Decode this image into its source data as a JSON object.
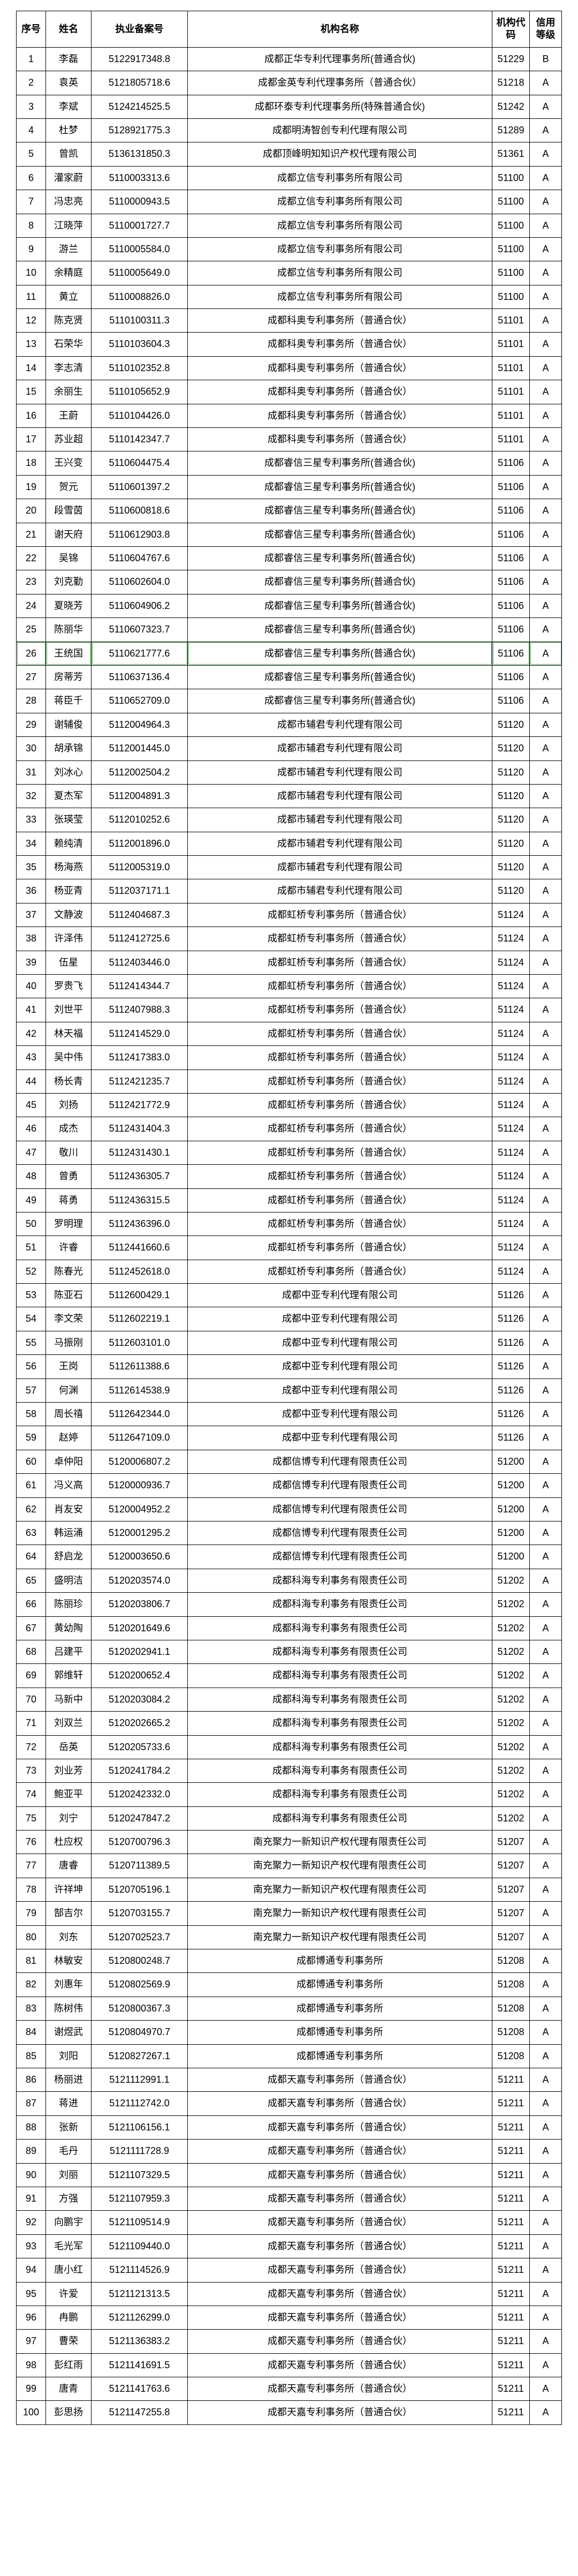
{
  "columns": [
    "序号",
    "姓名",
    "执业备案号",
    "机构名称",
    "机构代码",
    "信用等级"
  ],
  "highlight_seq": 26,
  "rows": [
    {
      "seq": 1,
      "name": "李磊",
      "lic": "5122917348.8",
      "org": "成都正华专利代理事务所(普通合伙)",
      "code": "51229",
      "grade": "B"
    },
    {
      "seq": 2,
      "name": "袁英",
      "lic": "5121805718.6",
      "org": "成都金英专利代理事务所（普通合伙）",
      "code": "51218",
      "grade": "A"
    },
    {
      "seq": 3,
      "name": "李斌",
      "lic": "5124214525.5",
      "org": "成都环泰专利代理事务所(特殊普通合伙)",
      "code": "51242",
      "grade": "A"
    },
    {
      "seq": 4,
      "name": "杜梦",
      "lic": "5128921775.3",
      "org": "成都明涛智创专利代理有限公司",
      "code": "51289",
      "grade": "A"
    },
    {
      "seq": 5,
      "name": "曾凯",
      "lic": "5136131850.3",
      "org": "成都顶峰明知知识产权代理有限公司",
      "code": "51361",
      "grade": "A"
    },
    {
      "seq": 6,
      "name": "灌家蔚",
      "lic": "5110003313.6",
      "org": "成都立信专利事务所有限公司",
      "code": "51100",
      "grade": "A"
    },
    {
      "seq": 7,
      "name": "冯忠亮",
      "lic": "5110000943.5",
      "org": "成都立信专利事务所有限公司",
      "code": "51100",
      "grade": "A"
    },
    {
      "seq": 8,
      "name": "江晓萍",
      "lic": "5110001727.7",
      "org": "成都立信专利事务所有限公司",
      "code": "51100",
      "grade": "A"
    },
    {
      "seq": 9,
      "name": "游兰",
      "lic": "5110005584.0",
      "org": "成都立信专利事务所有限公司",
      "code": "51100",
      "grade": "A"
    },
    {
      "seq": 10,
      "name": "余精庭",
      "lic": "5110005649.0",
      "org": "成都立信专利事务所有限公司",
      "code": "51100",
      "grade": "A"
    },
    {
      "seq": 11,
      "name": "黄立",
      "lic": "5110008826.0",
      "org": "成都立信专利事务所有限公司",
      "code": "51100",
      "grade": "A"
    },
    {
      "seq": 12,
      "name": "陈克贤",
      "lic": "5110100311.3",
      "org": "成都科奥专利事务所（普通合伙）",
      "code": "51101",
      "grade": "A"
    },
    {
      "seq": 13,
      "name": "石荣华",
      "lic": "5110103604.3",
      "org": "成都科奥专利事务所（普通合伙）",
      "code": "51101",
      "grade": "A"
    },
    {
      "seq": 14,
      "name": "李志清",
      "lic": "5110102352.8",
      "org": "成都科奥专利事务所（普通合伙）",
      "code": "51101",
      "grade": "A"
    },
    {
      "seq": 15,
      "name": "余丽生",
      "lic": "5110105652.9",
      "org": "成都科奥专利事务所（普通合伙）",
      "code": "51101",
      "grade": "A"
    },
    {
      "seq": 16,
      "name": "王蔚",
      "lic": "5110104426.0",
      "org": "成都科奥专利事务所（普通合伙）",
      "code": "51101",
      "grade": "A"
    },
    {
      "seq": 17,
      "name": "苏业超",
      "lic": "5110142347.7",
      "org": "成都科奥专利事务所（普通合伙）",
      "code": "51101",
      "grade": "A"
    },
    {
      "seq": 18,
      "name": "王兴变",
      "lic": "5110604475.4",
      "org": "成都睿信三星专利事务所(普通合伙)",
      "code": "51106",
      "grade": "A"
    },
    {
      "seq": 19,
      "name": "贺元",
      "lic": "5110601397.2",
      "org": "成都睿信三星专利事务所(普通合伙)",
      "code": "51106",
      "grade": "A"
    },
    {
      "seq": 20,
      "name": "段雪茵",
      "lic": "5110600818.6",
      "org": "成都睿信三星专利事务所(普通合伙)",
      "code": "51106",
      "grade": "A"
    },
    {
      "seq": 21,
      "name": "谢天府",
      "lic": "5110612903.8",
      "org": "成都睿信三星专利事务所(普通合伙)",
      "code": "51106",
      "grade": "A"
    },
    {
      "seq": 22,
      "name": "吴锦",
      "lic": "5110604767.6",
      "org": "成都睿信三星专利事务所(普通合伙)",
      "code": "51106",
      "grade": "A"
    },
    {
      "seq": 23,
      "name": "刘克勤",
      "lic": "5110602604.0",
      "org": "成都睿信三星专利事务所(普通合伙)",
      "code": "51106",
      "grade": "A"
    },
    {
      "seq": 24,
      "name": "夏晓芳",
      "lic": "5110604906.2",
      "org": "成都睿信三星专利事务所(普通合伙)",
      "code": "51106",
      "grade": "A"
    },
    {
      "seq": 25,
      "name": "陈丽华",
      "lic": "5110607323.7",
      "org": "成都睿信三星专利事务所(普通合伙)",
      "code": "51106",
      "grade": "A"
    },
    {
      "seq": 26,
      "name": "王统国",
      "lic": "5110621777.6",
      "org": "成都睿信三星专利事务所(普通合伙)",
      "code": "51106",
      "grade": "A"
    },
    {
      "seq": 27,
      "name": "房蒂芳",
      "lic": "5110637136.4",
      "org": "成都睿信三星专利事务所(普通合伙)",
      "code": "51106",
      "grade": "A"
    },
    {
      "seq": 28,
      "name": "蒋臣千",
      "lic": "5110652709.0",
      "org": "成都睿信三星专利事务所(普通合伙)",
      "code": "51106",
      "grade": "A"
    },
    {
      "seq": 29,
      "name": "谢辅俊",
      "lic": "5112004964.3",
      "org": "成都市辅君专利代理有限公司",
      "code": "51120",
      "grade": "A"
    },
    {
      "seq": 30,
      "name": "胡承锦",
      "lic": "5112001445.0",
      "org": "成都市辅君专利代理有限公司",
      "code": "51120",
      "grade": "A"
    },
    {
      "seq": 31,
      "name": "刘冰心",
      "lic": "5112002504.2",
      "org": "成都市辅君专利代理有限公司",
      "code": "51120",
      "grade": "A"
    },
    {
      "seq": 32,
      "name": "夏杰军",
      "lic": "5112004891.3",
      "org": "成都市辅君专利代理有限公司",
      "code": "51120",
      "grade": "A"
    },
    {
      "seq": 33,
      "name": "张瑛莹",
      "lic": "5112010252.6",
      "org": "成都市辅君专利代理有限公司",
      "code": "51120",
      "grade": "A"
    },
    {
      "seq": 34,
      "name": "赖纯清",
      "lic": "5112001896.0",
      "org": "成都市辅君专利代理有限公司",
      "code": "51120",
      "grade": "A"
    },
    {
      "seq": 35,
      "name": "杨海燕",
      "lic": "5112005319.0",
      "org": "成都市辅君专利代理有限公司",
      "code": "51120",
      "grade": "A"
    },
    {
      "seq": 36,
      "name": "杨亚青",
      "lic": "5112037171.1",
      "org": "成都市辅君专利代理有限公司",
      "code": "51120",
      "grade": "A"
    },
    {
      "seq": 37,
      "name": "文静波",
      "lic": "5112404687.3",
      "org": "成都虹桥专利事务所（普通合伙）",
      "code": "51124",
      "grade": "A"
    },
    {
      "seq": 38,
      "name": "许泽伟",
      "lic": "5112412725.6",
      "org": "成都虹桥专利事务所（普通合伙）",
      "code": "51124",
      "grade": "A"
    },
    {
      "seq": 39,
      "name": "伍星",
      "lic": "5112403446.0",
      "org": "成都虹桥专利事务所（普通合伙）",
      "code": "51124",
      "grade": "A"
    },
    {
      "seq": 40,
      "name": "罗贵飞",
      "lic": "5112414344.7",
      "org": "成都虹桥专利事务所（普通合伙）",
      "code": "51124",
      "grade": "A"
    },
    {
      "seq": 41,
      "name": "刘世平",
      "lic": "5112407988.3",
      "org": "成都虹桥专利事务所（普通合伙）",
      "code": "51124",
      "grade": "A"
    },
    {
      "seq": 42,
      "name": "林天福",
      "lic": "5112414529.0",
      "org": "成都虹桥专利事务所（普通合伙）",
      "code": "51124",
      "grade": "A"
    },
    {
      "seq": 43,
      "name": "吴中伟",
      "lic": "5112417383.0",
      "org": "成都虹桥专利事务所（普通合伙）",
      "code": "51124",
      "grade": "A"
    },
    {
      "seq": 44,
      "name": "杨长青",
      "lic": "5112421235.7",
      "org": "成都虹桥专利事务所（普通合伙）",
      "code": "51124",
      "grade": "A"
    },
    {
      "seq": 45,
      "name": "刘扬",
      "lic": "5112421772.9",
      "org": "成都虹桥专利事务所（普通合伙）",
      "code": "51124",
      "grade": "A"
    },
    {
      "seq": 46,
      "name": "成杰",
      "lic": "5112431404.3",
      "org": "成都虹桥专利事务所（普通合伙）",
      "code": "51124",
      "grade": "A"
    },
    {
      "seq": 47,
      "name": "敬川",
      "lic": "5112431430.1",
      "org": "成都虹桥专利事务所（普通合伙）",
      "code": "51124",
      "grade": "A"
    },
    {
      "seq": 48,
      "name": "曾勇",
      "lic": "5112436305.7",
      "org": "成都虹桥专利事务所（普通合伙）",
      "code": "51124",
      "grade": "A"
    },
    {
      "seq": 49,
      "name": "蒋勇",
      "lic": "5112436315.5",
      "org": "成都虹桥专利事务所（普通合伙）",
      "code": "51124",
      "grade": "A"
    },
    {
      "seq": 50,
      "name": "罗明理",
      "lic": "5112436396.0",
      "org": "成都虹桥专利事务所（普通合伙）",
      "code": "51124",
      "grade": "A"
    },
    {
      "seq": 51,
      "name": "许睿",
      "lic": "5112441660.6",
      "org": "成都虹桥专利事务所（普通合伙）",
      "code": "51124",
      "grade": "A"
    },
    {
      "seq": 52,
      "name": "陈春光",
      "lic": "5112452618.0",
      "org": "成都虹桥专利事务所（普通合伙）",
      "code": "51124",
      "grade": "A"
    },
    {
      "seq": 53,
      "name": "陈亚石",
      "lic": "5112600429.1",
      "org": "成都中亚专利代理有限公司",
      "code": "51126",
      "grade": "A"
    },
    {
      "seq": 54,
      "name": "李文荣",
      "lic": "5112602219.1",
      "org": "成都中亚专利代理有限公司",
      "code": "51126",
      "grade": "A"
    },
    {
      "seq": 55,
      "name": "马振刚",
      "lic": "5112603101.0",
      "org": "成都中亚专利代理有限公司",
      "code": "51126",
      "grade": "A"
    },
    {
      "seq": 56,
      "name": "王岗",
      "lic": "5112611388.6",
      "org": "成都中亚专利代理有限公司",
      "code": "51126",
      "grade": "A"
    },
    {
      "seq": 57,
      "name": "何渊",
      "lic": "5112614538.9",
      "org": "成都中亚专利代理有限公司",
      "code": "51126",
      "grade": "A"
    },
    {
      "seq": 58,
      "name": "周长禧",
      "lic": "5112642344.0",
      "org": "成都中亚专利代理有限公司",
      "code": "51126",
      "grade": "A"
    },
    {
      "seq": 59,
      "name": "赵婷",
      "lic": "5112647109.0",
      "org": "成都中亚专利代理有限公司",
      "code": "51126",
      "grade": "A"
    },
    {
      "seq": 60,
      "name": "卓仲阳",
      "lic": "5120006807.2",
      "org": "成都信博专利代理有限责任公司",
      "code": "51200",
      "grade": "A"
    },
    {
      "seq": 61,
      "name": "冯义高",
      "lic": "5120000936.7",
      "org": "成都信博专利代理有限责任公司",
      "code": "51200",
      "grade": "A"
    },
    {
      "seq": 62,
      "name": "肖友安",
      "lic": "5120004952.2",
      "org": "成都信博专利代理有限责任公司",
      "code": "51200",
      "grade": "A"
    },
    {
      "seq": 63,
      "name": "韩运涌",
      "lic": "5120001295.2",
      "org": "成都信博专利代理有限责任公司",
      "code": "51200",
      "grade": "A"
    },
    {
      "seq": 64,
      "name": "舒启龙",
      "lic": "5120003650.6",
      "org": "成都信博专利代理有限责任公司",
      "code": "51200",
      "grade": "A"
    },
    {
      "seq": 65,
      "name": "盛明洁",
      "lic": "5120203574.0",
      "org": "成都科海专利事务有限责任公司",
      "code": "51202",
      "grade": "A"
    },
    {
      "seq": 66,
      "name": "陈丽珍",
      "lic": "5120203806.7",
      "org": "成都科海专利事务有限责任公司",
      "code": "51202",
      "grade": "A"
    },
    {
      "seq": 67,
      "name": "黄幼陶",
      "lic": "5120201649.6",
      "org": "成都科海专利事务有限责任公司",
      "code": "51202",
      "grade": "A"
    },
    {
      "seq": 68,
      "name": "吕建平",
      "lic": "5120202941.1",
      "org": "成都科海专利事务有限责任公司",
      "code": "51202",
      "grade": "A"
    },
    {
      "seq": 69,
      "name": "郭维轩",
      "lic": "5120200652.4",
      "org": "成都科海专利事务有限责任公司",
      "code": "51202",
      "grade": "A"
    },
    {
      "seq": 70,
      "name": "马新中",
      "lic": "5120203084.2",
      "org": "成都科海专利事务有限责任公司",
      "code": "51202",
      "grade": "A"
    },
    {
      "seq": 71,
      "name": "刘双兰",
      "lic": "5120202665.2",
      "org": "成都科海专利事务有限责任公司",
      "code": "51202",
      "grade": "A"
    },
    {
      "seq": 72,
      "name": "岳英",
      "lic": "5120205733.6",
      "org": "成都科海专利事务有限责任公司",
      "code": "51202",
      "grade": "A"
    },
    {
      "seq": 73,
      "name": "刘业芳",
      "lic": "5120241784.2",
      "org": "成都科海专利事务有限责任公司",
      "code": "51202",
      "grade": "A"
    },
    {
      "seq": 74,
      "name": "鲍亚平",
      "lic": "5120242332.0",
      "org": "成都科海专利事务有限责任公司",
      "code": "51202",
      "grade": "A"
    },
    {
      "seq": 75,
      "name": "刘宁",
      "lic": "5120247847.2",
      "org": "成都科海专利事务有限责任公司",
      "code": "51202",
      "grade": "A"
    },
    {
      "seq": 76,
      "name": "杜应权",
      "lic": "5120700796.3",
      "org": "南充聚力一新知识产权代理有限责任公司",
      "code": "51207",
      "grade": "A"
    },
    {
      "seq": 77,
      "name": "唐睿",
      "lic": "5120711389.5",
      "org": "南充聚力一新知识产权代理有限责任公司",
      "code": "51207",
      "grade": "A"
    },
    {
      "seq": 78,
      "name": "许祥坤",
      "lic": "5120705196.1",
      "org": "南充聚力一新知识产权代理有限责任公司",
      "code": "51207",
      "grade": "A"
    },
    {
      "seq": 79,
      "name": "郜吉尔",
      "lic": "5120703155.7",
      "org": "南充聚力一新知识产权代理有限责任公司",
      "code": "51207",
      "grade": "A"
    },
    {
      "seq": 80,
      "name": "刘东",
      "lic": "5120702523.7",
      "org": "南充聚力一新知识产权代理有限责任公司",
      "code": "51207",
      "grade": "A"
    },
    {
      "seq": 81,
      "name": "林敏安",
      "lic": "5120800248.7",
      "org": "成都博通专利事务所",
      "code": "51208",
      "grade": "A"
    },
    {
      "seq": 82,
      "name": "刘惠年",
      "lic": "5120802569.9",
      "org": "成都博通专利事务所",
      "code": "51208",
      "grade": "A"
    },
    {
      "seq": 83,
      "name": "陈树伟",
      "lic": "5120800367.3",
      "org": "成都博通专利事务所",
      "code": "51208",
      "grade": "A"
    },
    {
      "seq": 84,
      "name": "谢煜武",
      "lic": "5120804970.7",
      "org": "成都博通专利事务所",
      "code": "51208",
      "grade": "A"
    },
    {
      "seq": 85,
      "name": "刘阳",
      "lic": "5120827267.1",
      "org": "成都博通专利事务所",
      "code": "51208",
      "grade": "A"
    },
    {
      "seq": 86,
      "name": "杨丽进",
      "lic": "5121112991.1",
      "org": "成都天嘉专利事务所（普通合伙）",
      "code": "51211",
      "grade": "A"
    },
    {
      "seq": 87,
      "name": "蒋进",
      "lic": "5121112742.0",
      "org": "成都天嘉专利事务所（普通合伙）",
      "code": "51211",
      "grade": "A"
    },
    {
      "seq": 88,
      "name": "张新",
      "lic": "5121106156.1",
      "org": "成都天嘉专利事务所（普通合伙）",
      "code": "51211",
      "grade": "A"
    },
    {
      "seq": 89,
      "name": "毛丹",
      "lic": "5121111728.9",
      "org": "成都天嘉专利事务所（普通合伙）",
      "code": "51211",
      "grade": "A"
    },
    {
      "seq": 90,
      "name": "刘丽",
      "lic": "5121107329.5",
      "org": "成都天嘉专利事务所（普通合伙）",
      "code": "51211",
      "grade": "A"
    },
    {
      "seq": 91,
      "name": "方强",
      "lic": "5121107959.3",
      "org": "成都天嘉专利事务所（普通合伙）",
      "code": "51211",
      "grade": "A"
    },
    {
      "seq": 92,
      "name": "向鹏宇",
      "lic": "5121109514.9",
      "org": "成都天嘉专利事务所（普通合伙）",
      "code": "51211",
      "grade": "A"
    },
    {
      "seq": 93,
      "name": "毛光军",
      "lic": "5121109440.0",
      "org": "成都天嘉专利事务所（普通合伙）",
      "code": "51211",
      "grade": "A"
    },
    {
      "seq": 94,
      "name": "唐小红",
      "lic": "5121114526.9",
      "org": "成都天嘉专利事务所（普通合伙）",
      "code": "51211",
      "grade": "A"
    },
    {
      "seq": 95,
      "name": "许爱",
      "lic": "5121121313.5",
      "org": "成都天嘉专利事务所（普通合伙）",
      "code": "51211",
      "grade": "A"
    },
    {
      "seq": 96,
      "name": "冉鹏",
      "lic": "5121126299.0",
      "org": "成都天嘉专利事务所（普通合伙）",
      "code": "51211",
      "grade": "A"
    },
    {
      "seq": 97,
      "name": "曹荣",
      "lic": "5121136383.2",
      "org": "成都天嘉专利事务所（普通合伙）",
      "code": "51211",
      "grade": "A"
    },
    {
      "seq": 98,
      "name": "彭红雨",
      "lic": "5121141691.5",
      "org": "成都天嘉专利事务所（普通合伙）",
      "code": "51211",
      "grade": "A"
    },
    {
      "seq": 99,
      "name": "唐青",
      "lic": "5121141763.6",
      "org": "成都天嘉专利事务所（普通合伙）",
      "code": "51211",
      "grade": "A"
    },
    {
      "seq": 100,
      "name": "彭思扬",
      "lic": "5121147255.8",
      "org": "成都天嘉专利事务所（普通合伙）",
      "code": "51211",
      "grade": "A"
    }
  ]
}
